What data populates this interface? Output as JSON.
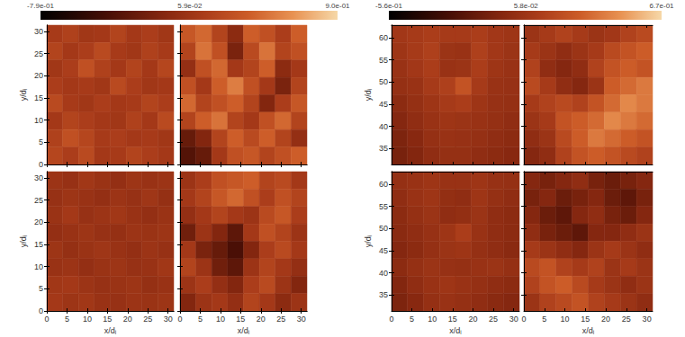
{
  "chart_data": [
    {
      "type": "heatmap",
      "colorbar": {
        "range": [
          -0.79,
          0.9
        ],
        "ticks": [
          {
            "value": -0.79,
            "label": "-7.9e-01"
          },
          {
            "value": 0.059,
            "label": "5.9e-02"
          },
          {
            "value": 0.9,
            "label": "9.0e-01"
          }
        ]
      },
      "x_label": "x/dᵢ",
      "y_label": "y/dᵢ",
      "xlim": [
        0,
        31.4
      ],
      "xticks": [
        0,
        5,
        10,
        15,
        20,
        25,
        30
      ],
      "ylim": [
        0,
        31.4
      ],
      "yticks": [
        0,
        5,
        10,
        15,
        20,
        25,
        30
      ],
      "panels": [
        {
          "tick_labels": "y",
          "cells": [
            [
              0.12,
              0.18,
              0.08,
              0.1,
              0.2,
              0.1,
              0.15,
              0.08
            ],
            [
              0.2,
              0.1,
              0.15,
              0.25,
              0.12,
              0.08,
              0.18,
              0.12
            ],
            [
              0.08,
              0.15,
              0.3,
              0.18,
              0.1,
              0.2,
              0.1,
              0.22
            ],
            [
              0.15,
              0.1,
              0.12,
              0.08,
              0.25,
              0.15,
              0.08,
              0.1
            ],
            [
              0.25,
              0.12,
              0.08,
              0.15,
              0.1,
              0.12,
              0.2,
              0.15
            ],
            [
              0.1,
              0.2,
              0.15,
              0.1,
              0.08,
              0.18,
              0.1,
              0.25
            ],
            [
              0.18,
              0.3,
              0.22,
              0.12,
              0.15,
              0.1,
              0.12,
              0.08
            ],
            [
              0.22,
              0.15,
              0.25,
              0.1,
              0.12,
              0.2,
              0.15,
              0.1
            ]
          ]
        },
        {
          "tick_labels": false,
          "cells": [
            [
              0.35,
              0.45,
              0.2,
              -0.05,
              0.4,
              0.3,
              0.15,
              0.4
            ],
            [
              0.2,
              0.5,
              0.3,
              -0.15,
              0.25,
              0.5,
              0.2,
              0.3
            ],
            [
              0.0,
              0.3,
              0.45,
              0.1,
              0.2,
              0.4,
              -0.05,
              0.1
            ],
            [
              0.3,
              0.1,
              0.4,
              0.55,
              0.3,
              0.1,
              -0.15,
              0.2
            ],
            [
              0.45,
              0.2,
              0.3,
              0.4,
              0.2,
              -0.1,
              0.15,
              0.35
            ],
            [
              0.2,
              0.4,
              0.5,
              0.2,
              0.1,
              0.3,
              0.45,
              0.2
            ],
            [
              -0.25,
              -0.1,
              0.2,
              0.4,
              0.25,
              0.4,
              0.2,
              0.0
            ],
            [
              -0.35,
              -0.25,
              0.1,
              0.3,
              0.35,
              0.2,
              0.3,
              0.4
            ]
          ]
        },
        {
          "tick_labels": true,
          "cells": [
            [
              0.05,
              0.02,
              0.08,
              0.04,
              0.0,
              0.06,
              0.03,
              0.05
            ],
            [
              0.02,
              0.06,
              0.03,
              0.0,
              0.05,
              0.02,
              0.07,
              0.01
            ],
            [
              0.04,
              0.1,
              0.02,
              0.05,
              0.08,
              0.03,
              0.0,
              0.04
            ],
            [
              0.0,
              0.03,
              0.06,
              0.02,
              0.01,
              0.05,
              0.04,
              0.06
            ],
            [
              0.06,
              0.01,
              0.04,
              0.07,
              0.03,
              0.0,
              0.05,
              0.02
            ],
            [
              0.03,
              0.05,
              0.0,
              0.04,
              0.06,
              0.02,
              0.03,
              0.08
            ],
            [
              0.08,
              0.1,
              0.05,
              0.02,
              0.04,
              0.06,
              0.01,
              0.03
            ],
            [
              0.1,
              0.06,
              0.08,
              0.03,
              0.02,
              0.05,
              0.04,
              0.06
            ]
          ]
        },
        {
          "tick_labels": "x",
          "cells": [
            [
              0.05,
              0.15,
              0.3,
              0.35,
              0.4,
              0.2,
              0.25,
              0.1
            ],
            [
              0.1,
              0.2,
              0.35,
              0.45,
              0.3,
              0.15,
              0.3,
              0.2
            ],
            [
              0.0,
              0.1,
              0.2,
              0.1,
              0.05,
              0.25,
              0.35,
              0.15
            ],
            [
              -0.2,
              0.05,
              -0.1,
              -0.3,
              0.1,
              0.3,
              0.2,
              0.05
            ],
            [
              0.1,
              -0.15,
              -0.25,
              -0.4,
              -0.1,
              0.15,
              0.25,
              0.1
            ],
            [
              0.2,
              0.05,
              -0.2,
              -0.3,
              0.05,
              0.2,
              0.1,
              0.0
            ],
            [
              0.05,
              0.15,
              0.0,
              -0.1,
              0.15,
              0.25,
              0.05,
              -0.1
            ],
            [
              -0.1,
              0.05,
              0.1,
              0.0,
              0.2,
              0.1,
              -0.05,
              0.05
            ]
          ]
        }
      ]
    },
    {
      "type": "heatmap",
      "colorbar": {
        "range": [
          -0.56,
          0.67
        ],
        "ticks": [
          {
            "value": -0.56,
            "label": "-5.6e-01"
          },
          {
            "value": 0.058,
            "label": "5.8e-02"
          },
          {
            "value": 0.67,
            "label": "6.7e-01"
          }
        ]
      },
      "x_label": "x/dᵢ",
      "y_label": "y/dᵢ",
      "xlim": [
        0,
        31.4
      ],
      "xticks": [
        0,
        5,
        10,
        15,
        20,
        25,
        30
      ],
      "ylim": [
        31.4,
        62.8
      ],
      "yticks": [
        35,
        40,
        45,
        50,
        55,
        60
      ],
      "panels": [
        {
          "tick_labels": "y",
          "cells": [
            [
              0.08,
              0.1,
              0.12,
              0.1,
              0.1,
              0.12,
              0.08,
              0.06
            ],
            [
              0.06,
              0.1,
              0.14,
              0.05,
              0.04,
              0.14,
              0.08,
              0.05
            ],
            [
              0.04,
              0.08,
              0.12,
              0.04,
              0.05,
              0.12,
              0.06,
              0.04
            ],
            [
              0.02,
              0.04,
              0.1,
              0.14,
              0.25,
              0.1,
              0.04,
              0.03
            ],
            [
              -0.02,
              0.02,
              0.06,
              0.1,
              0.12,
              0.06,
              0.03,
              0.02
            ],
            [
              -0.05,
              0.0,
              0.04,
              0.06,
              0.05,
              0.04,
              0.02,
              0.0
            ],
            [
              -0.08,
              -0.04,
              0.02,
              0.04,
              0.03,
              0.02,
              0.0,
              -0.02
            ],
            [
              -0.1,
              -0.06,
              0.0,
              0.02,
              0.02,
              0.0,
              -0.02,
              -0.04
            ]
          ]
        },
        {
          "tick_labels": false,
          "cells": [
            [
              0.05,
              0.1,
              0.15,
              0.1,
              0.05,
              0.08,
              0.15,
              0.2
            ],
            [
              0.1,
              0.05,
              0.0,
              0.05,
              0.1,
              0.2,
              0.25,
              0.3
            ],
            [
              0.15,
              0.0,
              -0.05,
              0.0,
              0.15,
              0.25,
              0.3,
              0.25
            ],
            [
              0.2,
              0.1,
              0.0,
              -0.05,
              0.05,
              0.3,
              0.35,
              0.4
            ],
            [
              0.1,
              0.15,
              0.2,
              0.15,
              0.25,
              0.35,
              0.45,
              0.4
            ],
            [
              0.05,
              0.1,
              0.25,
              0.3,
              0.35,
              0.45,
              0.4,
              0.35
            ],
            [
              0.0,
              0.05,
              0.2,
              0.3,
              0.4,
              0.35,
              0.3,
              0.25
            ],
            [
              -0.05,
              0.0,
              0.15,
              0.25,
              0.3,
              0.25,
              0.2,
              0.15
            ]
          ]
        },
        {
          "tick_labels": true,
          "cells": [
            [
              0.02,
              0.04,
              0.06,
              0.04,
              0.04,
              0.06,
              0.03,
              0.02
            ],
            [
              0.0,
              0.04,
              0.06,
              0.01,
              0.0,
              0.06,
              0.02,
              0.0
            ],
            [
              -0.02,
              0.02,
              0.05,
              0.0,
              0.01,
              0.05,
              0.0,
              -0.02
            ],
            [
              -0.03,
              0.0,
              0.03,
              0.06,
              0.12,
              0.04,
              0.0,
              -0.02
            ],
            [
              -0.05,
              -0.02,
              0.02,
              0.05,
              0.06,
              0.02,
              0.0,
              -0.03
            ],
            [
              -0.02,
              0.02,
              0.05,
              0.03,
              0.02,
              0.04,
              0.05,
              0.02
            ],
            [
              -0.06,
              0.0,
              0.04,
              0.06,
              0.04,
              0.02,
              0.0,
              -0.02
            ],
            [
              -0.08,
              -0.04,
              0.02,
              0.04,
              0.02,
              0.0,
              -0.03,
              -0.05
            ]
          ]
        },
        {
          "tick_labels": "x",
          "cells": [
            [
              -0.05,
              -0.1,
              -0.05,
              0.0,
              -0.1,
              -0.15,
              -0.1,
              -0.05
            ],
            [
              -0.1,
              -0.05,
              -0.15,
              -0.1,
              -0.05,
              -0.15,
              -0.2,
              -0.1
            ],
            [
              -0.05,
              -0.15,
              -0.2,
              -0.05,
              0.0,
              -0.1,
              -0.15,
              -0.05
            ],
            [
              0.0,
              -0.1,
              -0.15,
              -0.2,
              -0.05,
              -0.05,
              0.0,
              0.05
            ],
            [
              0.1,
              0.05,
              0.0,
              -0.05,
              0.05,
              0.1,
              0.05,
              0.0
            ],
            [
              0.2,
              0.25,
              0.15,
              0.1,
              0.15,
              0.05,
              0.1,
              0.05
            ],
            [
              0.15,
              0.25,
              0.3,
              0.2,
              0.1,
              0.05,
              0.0,
              0.05
            ],
            [
              0.05,
              0.15,
              0.2,
              0.25,
              0.15,
              0.1,
              0.05,
              0.0
            ]
          ]
        }
      ]
    }
  ]
}
